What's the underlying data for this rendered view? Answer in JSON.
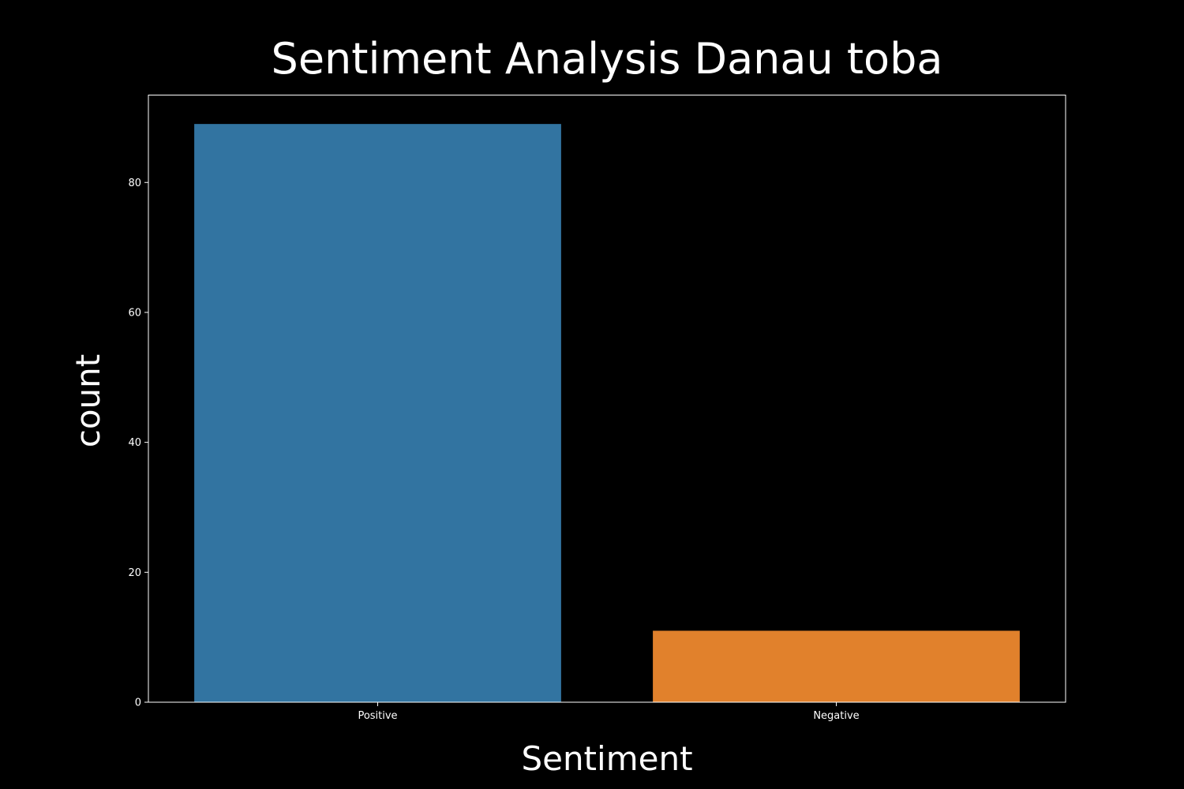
{
  "chart_data": {
    "type": "bar",
    "title": "Sentiment Analysis Danau toba",
    "xlabel": "Sentiment",
    "ylabel": "count",
    "categories": [
      "Positive",
      "Negative"
    ],
    "values": [
      89,
      11
    ],
    "colors": [
      "#3274a1",
      "#e1812c"
    ],
    "ylim": [
      0,
      93.45
    ],
    "yticks": [
      0,
      20,
      40,
      60,
      80
    ],
    "grid": false,
    "background": "#000000",
    "foreground": "#ffffff"
  }
}
